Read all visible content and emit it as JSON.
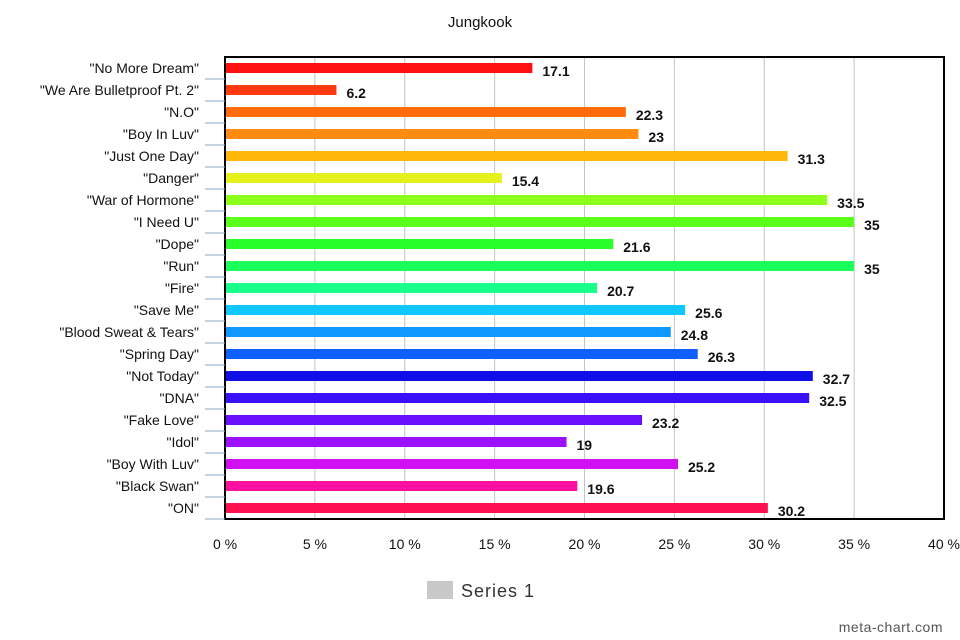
{
  "chart_data": {
    "type": "bar",
    "orientation": "horizontal",
    "title": "Jungkook",
    "categories": [
      "\"No More Dream\"",
      "\"We Are Bulletproof Pt. 2\"",
      "\"N.O\"",
      "\"Boy In Luv\"",
      "\"Just One Day\"",
      "\"Danger\"",
      "\"War of Hormone\"",
      "\"I Need U\"",
      "\"Dope\"",
      "\"Run\"",
      "\"Fire\"",
      "\"Save Me\"",
      "\"Blood Sweat & Tears\"",
      "\"Spring Day\"",
      "\"Not Today\"",
      "\"DNA\"",
      "\"Fake Love\"",
      "\"Idol\"",
      "\"Boy With Luv\"",
      "\"Black Swan\"",
      "\"ON\""
    ],
    "series": [
      {
        "name": "Series 1",
        "values": [
          17.1,
          6.2,
          22.3,
          23,
          31.3,
          15.4,
          33.5,
          35,
          21.6,
          35,
          20.7,
          25.6,
          24.8,
          26.3,
          32.7,
          32.5,
          23.2,
          19,
          25.2,
          19.6,
          30.2
        ],
        "value_labels": [
          "17.1",
          "6.2",
          "22.3",
          "23",
          "31.3",
          "15.4",
          "33.5",
          "35",
          "21.6",
          "35",
          "20.7",
          "25.6",
          "24.8",
          "26.3",
          "32.7",
          "32.5",
          "23.2",
          "19",
          "25.2",
          "19.6",
          "30.2"
        ]
      }
    ],
    "bar_colors": [
      "#ff1010",
      "#ff3a10",
      "#ff6a0a",
      "#ff8c10",
      "#ffb80a",
      "#e6f01a",
      "#8cff1a",
      "#5aff1a",
      "#28ff28",
      "#1aff5a",
      "#1aff8c",
      "#10c8ff",
      "#1098ff",
      "#1060ff",
      "#1010e6",
      "#3a10ff",
      "#6a10ff",
      "#9a10ff",
      "#d010f0",
      "#ff10a0",
      "#ff1050"
    ],
    "xlim": [
      0,
      40
    ],
    "x_ticks": [
      0,
      5,
      10,
      15,
      20,
      25,
      30,
      35,
      40
    ],
    "x_tick_labels": [
      "0 %",
      "5 %",
      "10 %",
      "15 %",
      "20 %",
      "25 %",
      "30 %",
      "35 %",
      "40 %"
    ],
    "grid": "vertical",
    "legend": {
      "placement": "bottom-center",
      "label": "Series 1",
      "swatch_color": "#c8c8c8"
    },
    "credit": "meta-chart.com"
  }
}
